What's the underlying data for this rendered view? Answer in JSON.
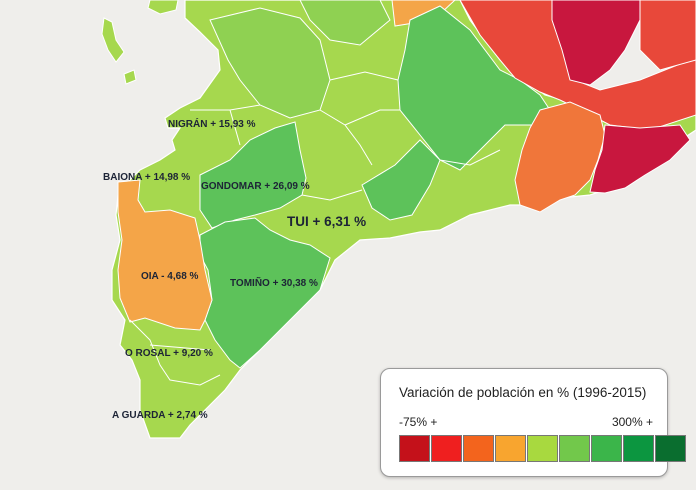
{
  "map": {
    "labels": {
      "nigran": "NIGRÁN + 15,93 %",
      "baiona": "BAIONA + 14,98 %",
      "gondomar": "GONDOMAR + 26,09 %",
      "tui": "TUI + 6,31 %",
      "oia": "OIA - 4,68 %",
      "tomino": "TOMIÑO + 30,38 %",
      "o_rosal": "O ROSAL + 9,20 %",
      "a_guarda": "A GUARDA + 2,74 %"
    },
    "colors": {
      "sea": "#efeeeb",
      "land_lightgreen": "#a6d84e",
      "land_green": "#7ccc55",
      "land_midgreen": "#5dc25a",
      "orange": "#f4a548",
      "darkorange": "#f0763a",
      "red": "#e8483a",
      "darkred": "#c8173e"
    }
  },
  "legend": {
    "title": "Variación de población en % (1996-2015)",
    "min_label": "-75% +",
    "max_label": "300% +",
    "colors": [
      "#c4111a",
      "#ef1f1f",
      "#f3641d",
      "#f8a52f",
      "#a8d93f",
      "#72c84b",
      "#3bb54a",
      "#0c9640",
      "#0a6e2f"
    ]
  }
}
